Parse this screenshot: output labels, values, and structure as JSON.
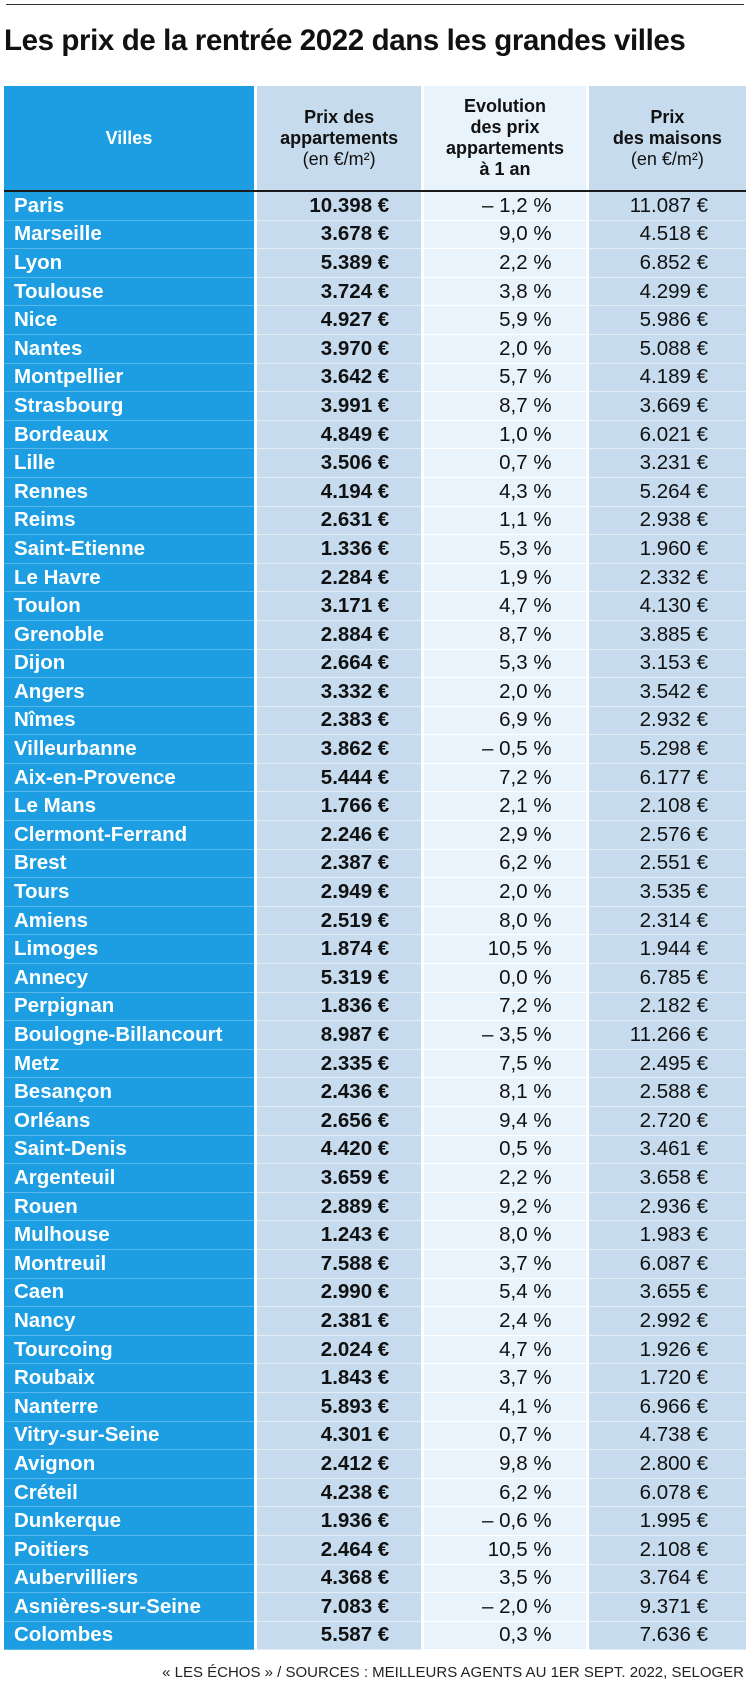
{
  "title": "Les prix de la rentrée 2022 dans les grandes villes",
  "headers": {
    "villes": "Villes",
    "prix_appart_l1": "Prix des",
    "prix_appart_l2": "appartements",
    "prix_appart_unit": "(en €/m²)",
    "evolution_l1": "Evolution",
    "evolution_l2": "des prix",
    "evolution_l3": "appartements",
    "evolution_l4": "à 1 an",
    "prix_maisons_l1": "Prix",
    "prix_maisons_l2": "des maisons",
    "prix_maisons_unit": "(en €/m²)"
  },
  "rows": [
    {
      "ville": "Paris",
      "appart": "10.398 €",
      "evolution": "– 1,2 %",
      "maison": "11.087 €"
    },
    {
      "ville": "Marseille",
      "appart": "3.678 €",
      "evolution": "9,0 %",
      "maison": "4.518 €"
    },
    {
      "ville": "Lyon",
      "appart": "5.389 €",
      "evolution": "2,2 %",
      "maison": "6.852 €"
    },
    {
      "ville": "Toulouse",
      "appart": "3.724 €",
      "evolution": "3,8 %",
      "maison": "4.299 €"
    },
    {
      "ville": "Nice",
      "appart": "4.927 €",
      "evolution": "5,9 %",
      "maison": "5.986 €"
    },
    {
      "ville": "Nantes",
      "appart": "3.970 €",
      "evolution": "2,0 %",
      "maison": "5.088 €"
    },
    {
      "ville": "Montpellier",
      "appart": "3.642 €",
      "evolution": "5,7 %",
      "maison": "4.189 €"
    },
    {
      "ville": "Strasbourg",
      "appart": "3.991 €",
      "evolution": "8,7 %",
      "maison": "3.669 €"
    },
    {
      "ville": "Bordeaux",
      "appart": "4.849 €",
      "evolution": "1,0 %",
      "maison": "6.021 €"
    },
    {
      "ville": "Lille",
      "appart": "3.506 €",
      "evolution": "0,7 %",
      "maison": "3.231 €"
    },
    {
      "ville": "Rennes",
      "appart": "4.194 €",
      "evolution": "4,3 %",
      "maison": "5.264 €"
    },
    {
      "ville": "Reims",
      "appart": "2.631 €",
      "evolution": "1,1 %",
      "maison": "2.938 €"
    },
    {
      "ville": "Saint-Etienne",
      "appart": "1.336 €",
      "evolution": "5,3 %",
      "maison": "1.960 €"
    },
    {
      "ville": "Le Havre",
      "appart": "2.284 €",
      "evolution": "1,9 %",
      "maison": "2.332 €"
    },
    {
      "ville": "Toulon",
      "appart": "3.171 €",
      "evolution": "4,7 %",
      "maison": "4.130 €"
    },
    {
      "ville": "Grenoble",
      "appart": "2.884 €",
      "evolution": "8,7 %",
      "maison": "3.885 €"
    },
    {
      "ville": "Dijon",
      "appart": "2.664 €",
      "evolution": "5,3 %",
      "maison": "3.153 €"
    },
    {
      "ville": "Angers",
      "appart": "3.332 €",
      "evolution": "2,0 %",
      "maison": "3.542 €"
    },
    {
      "ville": "Nîmes",
      "appart": "2.383 €",
      "evolution": "6,9 %",
      "maison": "2.932 €"
    },
    {
      "ville": "Villeurbanne",
      "appart": "3.862 €",
      "evolution": "– 0,5 %",
      "maison": "5.298 €"
    },
    {
      "ville": "Aix-en-Provence",
      "appart": "5.444 €",
      "evolution": "7,2 %",
      "maison": "6.177 €"
    },
    {
      "ville": "Le Mans",
      "appart": "1.766 €",
      "evolution": "2,1 %",
      "maison": "2.108 €"
    },
    {
      "ville": "Clermont-Ferrand",
      "appart": "2.246 €",
      "evolution": "2,9 %",
      "maison": "2.576 €"
    },
    {
      "ville": "Brest",
      "appart": "2.387 €",
      "evolution": "6,2 %",
      "maison": "2.551 €"
    },
    {
      "ville": "Tours",
      "appart": "2.949 €",
      "evolution": "2,0 %",
      "maison": "3.535 €"
    },
    {
      "ville": "Amiens",
      "appart": "2.519 €",
      "evolution": "8,0 %",
      "maison": "2.314 €"
    },
    {
      "ville": "Limoges",
      "appart": "1.874 €",
      "evolution": "10,5 %",
      "maison": "1.944 €"
    },
    {
      "ville": "Annecy",
      "appart": "5.319 €",
      "evolution": "0,0 %",
      "maison": "6.785 €"
    },
    {
      "ville": "Perpignan",
      "appart": "1.836 €",
      "evolution": "7,2 %",
      "maison": "2.182 €"
    },
    {
      "ville": "Boulogne-Billancourt",
      "appart": "8.987 €",
      "evolution": "– 3,5 %",
      "maison": "11.266 €"
    },
    {
      "ville": "Metz",
      "appart": "2.335 €",
      "evolution": "7,5 %",
      "maison": "2.495 €"
    },
    {
      "ville": "Besançon",
      "appart": "2.436 €",
      "evolution": "8,1 %",
      "maison": "2.588 €"
    },
    {
      "ville": "Orléans",
      "appart": "2.656 €",
      "evolution": "9,4 %",
      "maison": "2.720 €"
    },
    {
      "ville": "Saint-Denis",
      "appart": "4.420 €",
      "evolution": "0,5 %",
      "maison": "3.461 €"
    },
    {
      "ville": "Argenteuil",
      "appart": "3.659 €",
      "evolution": "2,2 %",
      "maison": "3.658 €"
    },
    {
      "ville": "Rouen",
      "appart": "2.889 €",
      "evolution": "9,2 %",
      "maison": "2.936 €"
    },
    {
      "ville": "Mulhouse",
      "appart": "1.243 €",
      "evolution": "8,0 %",
      "maison": "1.983 €"
    },
    {
      "ville": "Montreuil",
      "appart": "7.588 €",
      "evolution": "3,7 %",
      "maison": "6.087 €"
    },
    {
      "ville": "Caen",
      "appart": "2.990 €",
      "evolution": "5,4 %",
      "maison": "3.655 €"
    },
    {
      "ville": "Nancy",
      "appart": "2.381 €",
      "evolution": "2,4 %",
      "maison": "2.992 €"
    },
    {
      "ville": "Tourcoing",
      "appart": "2.024 €",
      "evolution": "4,7 %",
      "maison": "1.926 €"
    },
    {
      "ville": "Roubaix",
      "appart": "1.843 €",
      "evolution": "3,7 %",
      "maison": "1.720 €"
    },
    {
      "ville": "Nanterre",
      "appart": "5.893 €",
      "evolution": "4,1 %",
      "maison": "6.966 €"
    },
    {
      "ville": "Vitry-sur-Seine",
      "appart": "4.301 €",
      "evolution": "0,7 %",
      "maison": "4.738 €"
    },
    {
      "ville": "Avignon",
      "appart": "2.412 €",
      "evolution": "9,8 %",
      "maison": "2.800 €"
    },
    {
      "ville": "Créteil",
      "appart": "4.238 €",
      "evolution": "6,2 %",
      "maison": "6.078 €"
    },
    {
      "ville": "Dunkerque",
      "appart": "1.936 €",
      "evolution": "– 0,6 %",
      "maison": "1.995 €"
    },
    {
      "ville": "Poitiers",
      "appart": "2.464 €",
      "evolution": "10,5 %",
      "maison": "2.108 €"
    },
    {
      "ville": "Aubervilliers",
      "appart": "4.368 €",
      "evolution": "3,5 %",
      "maison": "3.764 €"
    },
    {
      "ville": "Asnières-sur-Seine",
      "appart": "7.083 €",
      "evolution": "– 2,0 %",
      "maison": "9.371 €"
    },
    {
      "ville": "Colombes",
      "appart": "5.587 €",
      "evolution": "0,3 %",
      "maison": "7.636 €"
    }
  ],
  "source": "« LES ÉCHOS » / SOURCES : MEILLEURS AGENTS AU 1ER SEPT. 2022, SELOGER"
}
